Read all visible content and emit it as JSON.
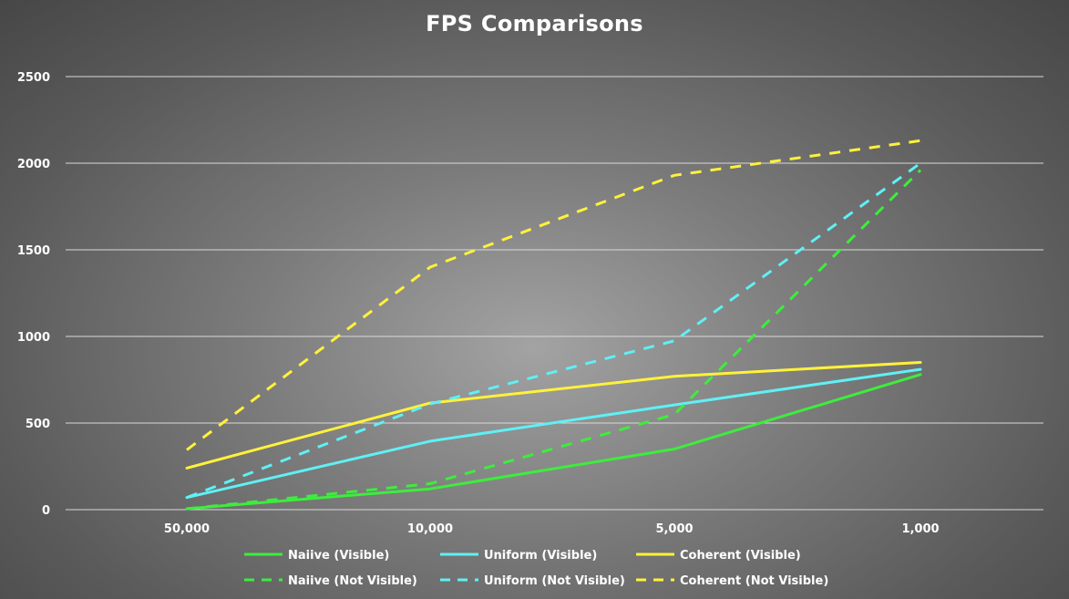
{
  "chart_data": {
    "type": "line",
    "title": "FPS Comparisons",
    "xlabel": "",
    "ylabel": "",
    "categories": [
      "50,000",
      "10,000",
      "5,000",
      "1,000"
    ],
    "ylim": [
      0,
      2500
    ],
    "yticks": [
      0,
      500,
      1000,
      1500,
      2000,
      2500
    ],
    "grid": true,
    "legend_position": "bottom",
    "series": [
      {
        "name": "Naiive (Visible)",
        "values": [
          5,
          120,
          350,
          780
        ],
        "color": "#3ded3d",
        "style": "solid"
      },
      {
        "name": "Uniform (Visible)",
        "values": [
          70,
          395,
          605,
          810
        ],
        "color": "#5ff0f5",
        "style": "solid"
      },
      {
        "name": "Coherent (Visible)",
        "values": [
          240,
          615,
          770,
          850
        ],
        "color": "#fff23a",
        "style": "solid"
      },
      {
        "name": "Naiive (Not Visible)",
        "values": [
          5,
          150,
          550,
          1960
        ],
        "color": "#3ded3d",
        "style": "dashed"
      },
      {
        "name": "Uniform (Not Visible)",
        "values": [
          70,
          610,
          975,
          2000
        ],
        "color": "#5ff0f5",
        "style": "dashed"
      },
      {
        "name": "Coherent (Not Visible)",
        "values": [
          345,
          1400,
          1930,
          2130
        ],
        "color": "#fff23a",
        "style": "dashed"
      }
    ]
  }
}
